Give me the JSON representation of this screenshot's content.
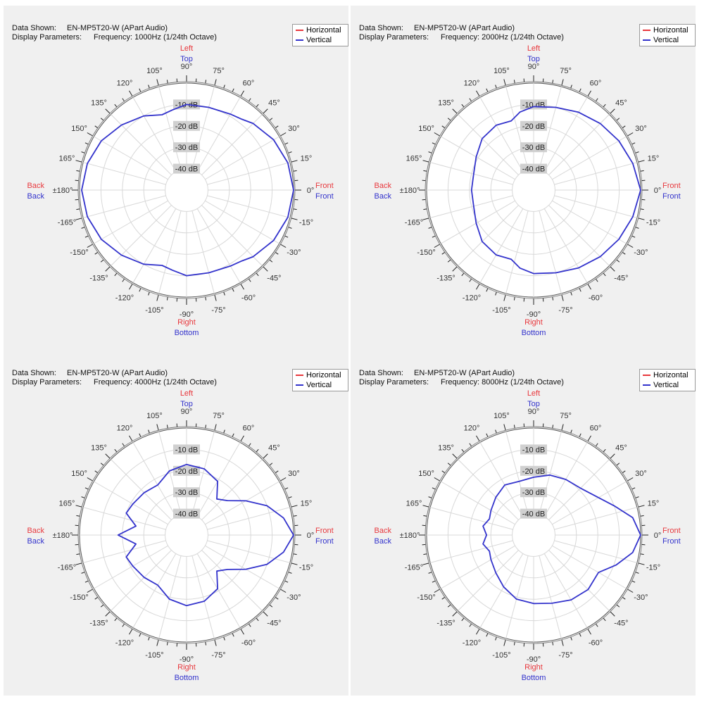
{
  "colors": {
    "horizontal": "#e8383d",
    "vertical": "#3333cc",
    "grid": "#d8d8d8",
    "ticks": "#222222"
  },
  "labels": {
    "data_shown_key": "Data Shown:",
    "display_params_key": "Display Parameters:",
    "legend_horizontal": "Horizontal",
    "legend_vertical": "Vertical",
    "left": "Left",
    "top": "Top",
    "right": "Right",
    "bottom": "Bottom",
    "front": "Front",
    "back": "Back"
  },
  "panels": [
    {
      "data_shown": "EN-MP5T20-W (APart Audio)",
      "display_params": "Frequency: 1000Hz (1/24th Octave)"
    },
    {
      "data_shown": "EN-MP5T20-W (APart Audio)",
      "display_params": "Frequency: 2000Hz (1/24th Octave)"
    },
    {
      "data_shown": "EN-MP5T20-W (APart Audio)",
      "display_params": "Frequency: 4000Hz (1/24th Octave)"
    },
    {
      "data_shown": "EN-MP5T20-W (APart Audio)",
      "display_params": "Frequency: 8000Hz (1/24th Octave)"
    }
  ],
  "chart_data": [
    {
      "type": "polar",
      "frequency": "1000Hz",
      "radial_range_db": [
        -50,
        0
      ],
      "ring_labels": [
        "-10 dB",
        "-20 dB",
        "-30 dB",
        "-40 dB"
      ],
      "angle_tick_labels": [
        "0°",
        "15°",
        "30°",
        "45°",
        "60°",
        "75°",
        "90°",
        "105°",
        "120°",
        "135°",
        "150°",
        "165°",
        "±180°",
        "-165°",
        "-150°",
        "-135°",
        "-120°",
        "-105°",
        "-90°",
        "-75°",
        "-60°",
        "-45°",
        "-30°",
        "-15°"
      ],
      "series": [
        {
          "name": "Vertical",
          "angles": [
            0,
            15,
            30,
            45,
            52,
            60,
            75,
            90,
            100,
            108,
            120,
            135,
            150,
            165,
            180,
            -165,
            -150,
            -135,
            -120,
            -108,
            -100,
            -90,
            -75,
            -60,
            -52,
            -45,
            -30,
            -15
          ],
          "values": [
            0,
            -1,
            -3,
            -6,
            -8,
            -9,
            -10,
            -10,
            -12,
            -13,
            -10,
            -7,
            -4,
            -2,
            -1,
            -2,
            -4,
            -7,
            -10,
            -13,
            -12,
            -10,
            -10,
            -9,
            -8,
            -6,
            -3,
            -1
          ]
        }
      ]
    },
    {
      "type": "polar",
      "frequency": "2000Hz",
      "radial_range_db": [
        -50,
        0
      ],
      "ring_labels": [
        "-10 dB",
        "-20 dB",
        "-30 dB",
        "-40 dB"
      ],
      "angle_tick_labels": [
        "0°",
        "15°",
        "30°",
        "45°",
        "60°",
        "75°",
        "90°",
        "105°",
        "120°",
        "135°",
        "150°",
        "165°",
        "±180°",
        "-165°",
        "-150°",
        "-135°",
        "-120°",
        "-105°",
        "-90°",
        "-75°",
        "-60°",
        "-45°",
        "-30°",
        "-15°"
      ],
      "series": [
        {
          "name": "Vertical",
          "angles": [
            0,
            15,
            30,
            45,
            60,
            75,
            90,
            100,
            108,
            120,
            135,
            150,
            165,
            180,
            -165,
            -150,
            -135,
            -120,
            -108,
            -100,
            -90,
            -75,
            -60,
            -45,
            -30,
            -15
          ],
          "values": [
            0,
            -2,
            -4,
            -6,
            -8,
            -10,
            -11,
            -13,
            -16,
            -15,
            -16,
            -19,
            -21,
            -21,
            -21,
            -19,
            -16,
            -15,
            -16,
            -13,
            -11,
            -10,
            -8,
            -6,
            -4,
            -2
          ]
        }
      ]
    },
    {
      "type": "polar",
      "frequency": "4000Hz",
      "radial_range_db": [
        -50,
        0
      ],
      "ring_labels": [
        "-10 dB",
        "-20 dB",
        "-30 dB",
        "-40 dB"
      ],
      "angle_tick_labels": [
        "0°",
        "15°",
        "30°",
        "45°",
        "60°",
        "75°",
        "90°",
        "105°",
        "120°",
        "135°",
        "150°",
        "165°",
        "±180°",
        "-165°",
        "-150°",
        "-135°",
        "-120°",
        "-105°",
        "-90°",
        "-75°",
        "-60°",
        "-45°",
        "-30°",
        "-15°"
      ],
      "series": [
        {
          "name": "Vertical",
          "angles": [
            0,
            10,
            20,
            30,
            40,
            50,
            60,
            75,
            90,
            105,
            120,
            135,
            150,
            160,
            170,
            180,
            -170,
            -160,
            -150,
            -135,
            -120,
            -105,
            -90,
            -75,
            -60,
            -50,
            -40,
            -30,
            -20,
            -10
          ],
          "values": [
            0,
            -4,
            -10,
            -18,
            -25,
            -28,
            -21,
            -18,
            -17,
            -19,
            -23,
            -22,
            -21,
            -20,
            -26,
            -18,
            -26,
            -20,
            -21,
            -22,
            -23,
            -19,
            -17,
            -18,
            -21,
            -28,
            -25,
            -18,
            -10,
            -4
          ]
        }
      ]
    },
    {
      "type": "polar",
      "frequency": "8000Hz",
      "radial_range_db": [
        -50,
        0
      ],
      "ring_labels": [
        "-10 dB",
        "-20 dB",
        "-30 dB",
        "-40 dB"
      ],
      "angle_tick_labels": [
        "0°",
        "15°",
        "30°",
        "45°",
        "60°",
        "75°",
        "90°",
        "105°",
        "120°",
        "135°",
        "150°",
        "165°",
        "±180°",
        "-165°",
        "-150°",
        "-135°",
        "-120°",
        "-105°",
        "-90°",
        "-75°",
        "-60°",
        "-45°",
        "-30°",
        "-15°"
      ],
      "series": [
        {
          "name": "Vertical",
          "angles": [
            0,
            10,
            20,
            30,
            45,
            60,
            75,
            90,
            105,
            120,
            135,
            150,
            160,
            170,
            180,
            -170,
            -160,
            -150,
            -135,
            -120,
            -105,
            -90,
            -75,
            -60,
            -45,
            -30,
            -20,
            -10
          ],
          "values": [
            0,
            -3,
            -10,
            -15,
            -19,
            -20,
            -21,
            -23,
            -24,
            -23,
            -25,
            -27,
            -28,
            -26,
            -28,
            -26,
            -28,
            -27,
            -25,
            -22,
            -19,
            -18,
            -17,
            -15,
            -14,
            -15,
            -9,
            -3
          ]
        }
      ]
    }
  ]
}
